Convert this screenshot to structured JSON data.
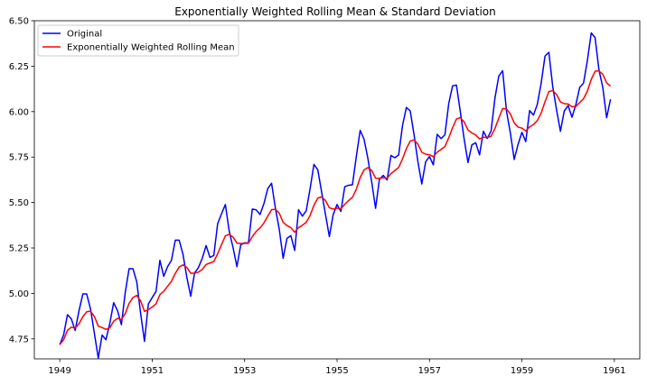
{
  "chart_data": {
    "type": "line",
    "title": "Exponentially Weighted Rolling Mean & Standard Deviation",
    "xlabel": "",
    "ylabel": "",
    "xlim": [
      1948.45,
      1961.55
    ],
    "ylim": [
      4.64,
      6.5
    ],
    "x_start": 1949.0,
    "x_step": 0.08333333,
    "x_ticks": [
      1949,
      1951,
      1953,
      1955,
      1957,
      1959,
      1961
    ],
    "x_tick_labels": [
      "1949",
      "1951",
      "1953",
      "1955",
      "1957",
      "1959",
      "1961"
    ],
    "y_ticks": [
      4.75,
      5.0,
      5.25,
      5.5,
      5.75,
      6.0,
      6.25,
      6.5
    ],
    "y_tick_labels": [
      "4.75",
      "5.00",
      "5.25",
      "5.50",
      "5.75",
      "6.00",
      "6.25",
      "6.50"
    ],
    "grid": false,
    "legend_position": "top-left",
    "series": [
      {
        "name": "Original",
        "color": "#0000ff",
        "values": [
          4.718,
          4.771,
          4.883,
          4.86,
          4.796,
          4.905,
          4.997,
          4.997,
          4.913,
          4.779,
          4.644,
          4.771,
          4.745,
          4.836,
          4.949,
          4.905,
          4.828,
          5.004,
          5.136,
          5.136,
          5.063,
          4.89,
          4.736,
          4.942,
          4.977,
          5.011,
          5.182,
          5.094,
          5.147,
          5.182,
          5.293,
          5.293,
          5.215,
          5.088,
          4.984,
          5.112,
          5.142,
          5.193,
          5.263,
          5.198,
          5.209,
          5.384,
          5.438,
          5.489,
          5.342,
          5.252,
          5.147,
          5.268,
          5.278,
          5.278,
          5.464,
          5.46,
          5.434,
          5.493,
          5.576,
          5.606,
          5.468,
          5.352,
          5.193,
          5.303,
          5.318,
          5.236,
          5.46,
          5.425,
          5.455,
          5.576,
          5.71,
          5.68,
          5.557,
          5.434,
          5.313,
          5.434,
          5.489,
          5.451,
          5.587,
          5.595,
          5.598,
          5.753,
          5.897,
          5.849,
          5.743,
          5.613,
          5.468,
          5.628,
          5.649,
          5.624,
          5.759,
          5.746,
          5.762,
          5.924,
          6.023,
          6.004,
          5.872,
          5.724,
          5.602,
          5.724,
          5.753,
          5.707,
          5.875,
          5.852,
          5.872,
          6.045,
          6.142,
          6.146,
          6.001,
          5.849,
          5.72,
          5.817,
          5.829,
          5.762,
          5.892,
          5.852,
          5.894,
          6.075,
          6.196,
          6.225,
          6.001,
          5.883,
          5.737,
          5.82,
          5.886,
          5.835,
          6.006,
          5.981,
          6.04,
          6.157,
          6.306,
          6.326,
          6.138,
          6.009,
          5.892,
          6.004,
          6.033,
          5.969,
          6.038,
          6.133,
          6.157,
          6.282,
          6.433,
          6.407,
          6.23,
          6.133,
          5.966,
          6.068
        ]
      },
      {
        "name": "Exponentially Weighted Rolling Mean",
        "color": "#ff0000",
        "values": [
          4.718,
          4.745,
          4.797,
          4.814,
          4.81,
          4.833,
          4.872,
          4.899,
          4.902,
          4.873,
          4.82,
          4.812,
          4.802,
          4.811,
          4.847,
          4.863,
          4.856,
          4.889,
          4.945,
          4.977,
          4.989,
          4.959,
          4.901,
          4.91,
          4.925,
          4.943,
          4.993,
          5.012,
          5.039,
          5.067,
          5.11,
          5.145,
          5.157,
          5.143,
          5.111,
          5.111,
          5.117,
          5.132,
          5.159,
          5.167,
          5.175,
          5.218,
          5.268,
          5.317,
          5.324,
          5.31,
          5.277,
          5.275,
          5.275,
          5.276,
          5.313,
          5.341,
          5.36,
          5.387,
          5.425,
          5.461,
          5.463,
          5.441,
          5.391,
          5.373,
          5.362,
          5.337,
          5.362,
          5.375,
          5.391,
          5.429,
          5.485,
          5.524,
          5.531,
          5.511,
          5.471,
          5.464,
          5.469,
          5.466,
          5.49,
          5.511,
          5.529,
          5.573,
          5.637,
          5.679,
          5.692,
          5.676,
          5.634,
          5.633,
          5.636,
          5.634,
          5.659,
          5.676,
          5.693,
          5.74,
          5.797,
          5.838,
          5.845,
          5.821,
          5.777,
          5.766,
          5.763,
          5.752,
          5.777,
          5.792,
          5.808,
          5.856,
          5.912,
          5.959,
          5.967,
          5.943,
          5.899,
          5.883,
          5.872,
          5.85,
          5.859,
          5.857,
          5.865,
          5.907,
          5.965,
          6.017,
          6.014,
          5.988,
          5.938,
          5.915,
          5.909,
          5.894,
          5.916,
          5.929,
          5.951,
          5.992,
          6.055,
          6.11,
          6.116,
          6.094,
          6.054,
          6.044,
          6.042,
          6.027,
          6.029,
          6.05,
          6.071,
          6.113,
          6.177,
          6.222,
          6.224,
          6.206,
          6.158,
          6.14
        ]
      }
    ]
  }
}
